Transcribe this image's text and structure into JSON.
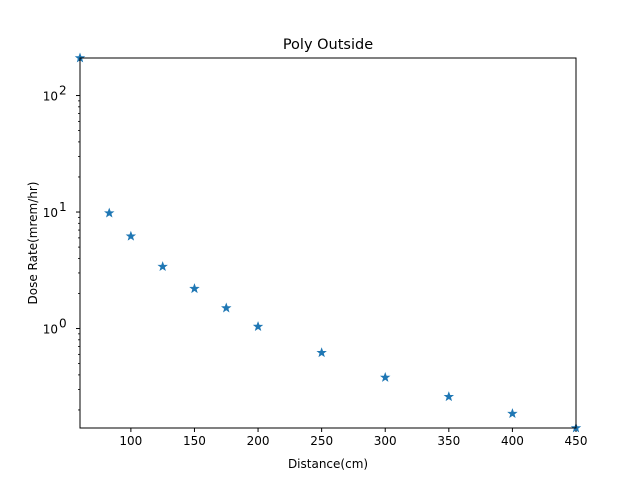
{
  "chart_data": {
    "type": "scatter",
    "title": "Poly Outside",
    "xlabel": "Distance(cm)",
    "ylabel": "Dose Rate(mrem/hr)",
    "xlim": [
      60,
      450
    ],
    "ylim": [
      0.14,
      210
    ],
    "yscale": "log",
    "x_ticks": [
      100,
      150,
      200,
      250,
      300,
      350,
      400,
      450
    ],
    "x_tick_labels": [
      "100",
      "150",
      "200",
      "250",
      "300",
      "350",
      "400",
      "450"
    ],
    "y_ticks": [
      1,
      10,
      100
    ],
    "y_tick_labels": [
      "10",
      "10",
      "10"
    ],
    "y_tick_exponents": [
      "0",
      "1",
      "2"
    ],
    "grid": false,
    "marker": "star",
    "color": "#1f77b4",
    "series": [
      {
        "x": [
          60,
          83,
          100,
          125,
          150,
          175,
          200,
          250,
          300,
          350,
          400,
          450
        ],
        "y": [
          210,
          9.8,
          6.2,
          3.4,
          2.2,
          1.5,
          1.04,
          0.62,
          0.38,
          0.26,
          0.186,
          0.14
        ]
      }
    ]
  }
}
